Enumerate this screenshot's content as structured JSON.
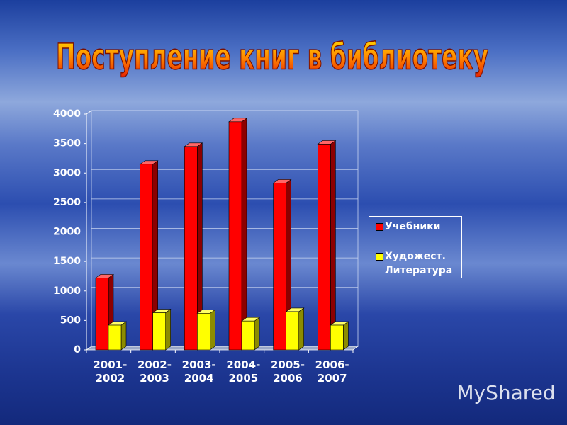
{
  "chart_data": {
    "type": "bar3d",
    "title": "Поступление книг в библиотеку",
    "categories": [
      "2001-2002",
      "2002-2003",
      "2003-2004",
      "2004-2005",
      "2005-2006",
      "2006-2007"
    ],
    "series": [
      {
        "name": "Учебники",
        "color": "#ff0000",
        "values": [
          1220,
          3150,
          3450,
          3870,
          2830,
          3490
        ]
      },
      {
        "name": "Художест. Литература",
        "color": "#ffff00",
        "values": [
          420,
          630,
          620,
          490,
          650,
          420
        ]
      }
    ],
    "ylim": [
      0,
      4000
    ],
    "yticks": [
      0,
      500,
      1000,
      1500,
      2000,
      2500,
      3000,
      3500,
      4000
    ],
    "grid": true,
    "legend": "right"
  },
  "watermark": "MyShared"
}
